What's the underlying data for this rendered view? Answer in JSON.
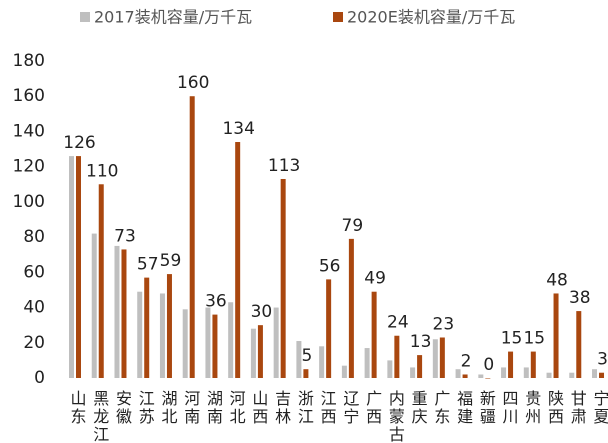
{
  "chart_data": {
    "type": "bar",
    "categories": [
      "山东",
      "黑龙江",
      "安徽",
      "江苏",
      "湖北",
      "河南",
      "湖南",
      "河北",
      "山西",
      "吉林",
      "浙江",
      "江西",
      "辽宁",
      "广西",
      "内蒙古",
      "重庆",
      "广东",
      "福建",
      "新疆",
      "四川",
      "贵州",
      "陕西",
      "甘肃",
      "宁夏"
    ],
    "series": [
      {
        "name": "2017装机容量/万千瓦",
        "color": "#bfbfbf",
        "values": [
          126,
          82,
          75,
          49,
          48,
          39,
          40,
          43,
          28,
          40,
          21,
          18,
          7,
          17,
          10,
          6,
          22,
          5,
          2,
          6,
          6,
          3,
          3,
          5
        ]
      },
      {
        "name": "2020E装机容量/万千瓦",
        "color": "#a9470f",
        "values": [
          126,
          110,
          73,
          57,
          59,
          160,
          36,
          134,
          30,
          113,
          5,
          56,
          79,
          49,
          24,
          13,
          23,
          2,
          0,
          15,
          15,
          48,
          38,
          3
        ],
        "labels": true
      }
    ],
    "ylim": [
      0,
      180
    ],
    "yticks": [
      0,
      20,
      40,
      60,
      80,
      100,
      120,
      140,
      160,
      180
    ],
    "grid": false,
    "legend": "top"
  }
}
